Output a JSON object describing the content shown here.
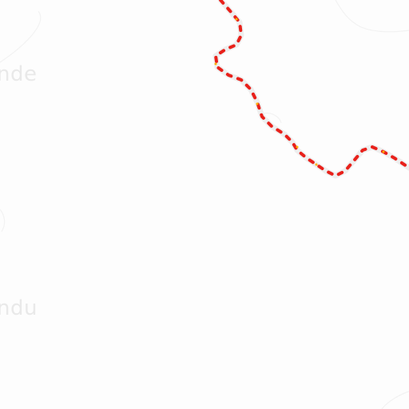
{
  "map": {
    "labels": [
      {
        "text": "nde"
      },
      {
        "text": "ndu"
      }
    ],
    "colors": {
      "background": "#fdfdfd",
      "route_casing": "#eeeeee",
      "route_dash": "#e8201a",
      "route_accent": "#ffb000",
      "faint_lines": "#f3f3f3",
      "label_text": "#e9e9e9"
    }
  }
}
